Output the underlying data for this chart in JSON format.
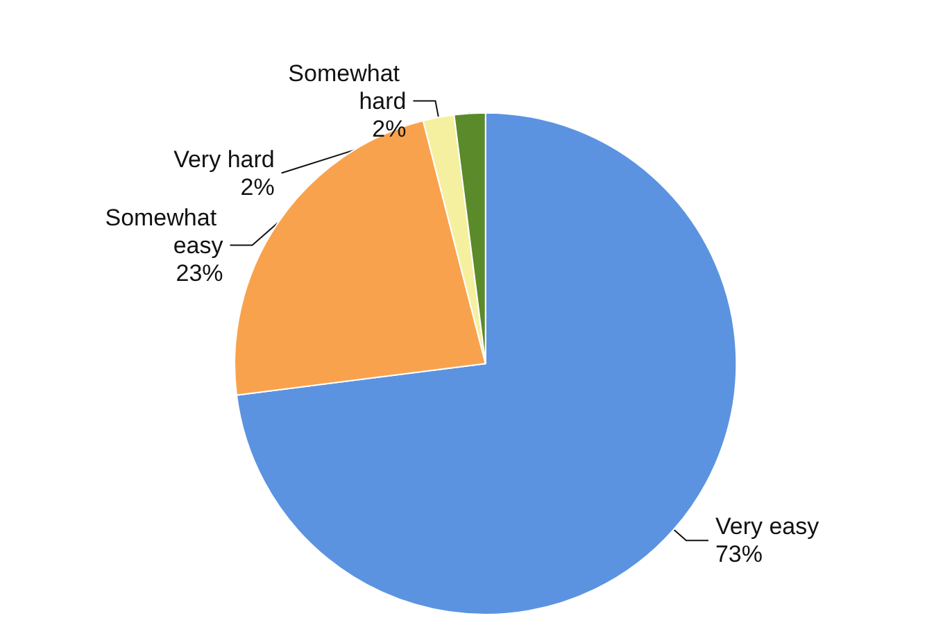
{
  "chart_data": {
    "type": "pie",
    "categories": [
      "Very easy",
      "Somewhat easy",
      "Somewhat hard",
      "Very hard"
    ],
    "values": [
      73,
      23,
      2,
      2
    ],
    "value_labels": [
      "73%",
      "23%",
      "2%",
      "2%"
    ],
    "colors": [
      "#5b93e0",
      "#f9a24d",
      "#f5f0a0",
      "#5a8a2a"
    ],
    "legend": false
  }
}
